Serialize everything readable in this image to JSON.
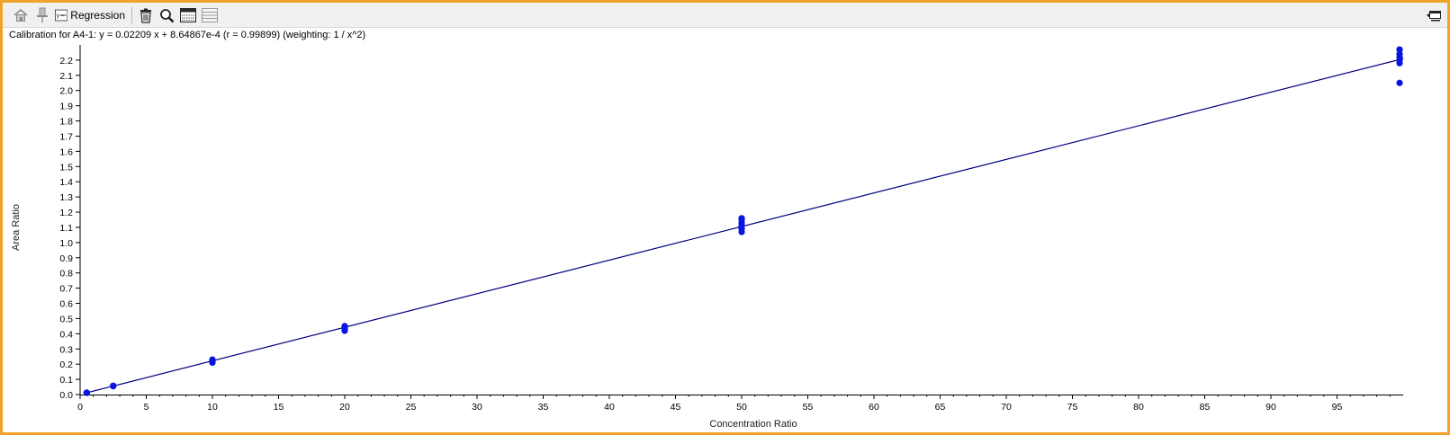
{
  "toolbar": {
    "regression_label": "Regression",
    "regression_icon_text": "y=",
    "icons": [
      "home-icon",
      "pin-icon",
      "regression-icon",
      "trash-icon",
      "zoom-icon",
      "calendar-table-icon",
      "list-icon",
      "dock-icon"
    ]
  },
  "colors": {
    "frame": "#f0a22a",
    "series": "#0a14e0",
    "fit_line": "#000080"
  },
  "chart_data": {
    "type": "scatter",
    "title": "Calibration for A4-1: y = 0.02209 x + 8.64867e-4 (r = 0.99899)  (weighting: 1 / x^2)",
    "xlabel": "Concentration Ratio",
    "ylabel": "Area Ratio",
    "xlim": [
      0,
      100
    ],
    "ylim": [
      0,
      2.3
    ],
    "xticks": [
      0,
      5,
      10,
      15,
      20,
      25,
      30,
      35,
      40,
      45,
      50,
      55,
      60,
      65,
      70,
      75,
      80,
      85,
      90,
      95
    ],
    "yticks": [
      0.0,
      0.1,
      0.2,
      0.3,
      0.4,
      0.5,
      0.6,
      0.7,
      0.8,
      0.9,
      1.0,
      1.1,
      1.2,
      1.3,
      1.4,
      1.5,
      1.6,
      1.7,
      1.8,
      1.9,
      2.0,
      2.1,
      2.2
    ],
    "grid": false,
    "fit": {
      "slope": 0.02209,
      "intercept": 0.000864867,
      "x_range": [
        0.5,
        100
      ]
    },
    "points": [
      {
        "x": 0.5,
        "y": 0.011
      },
      {
        "x": 0.5,
        "y": 0.013
      },
      {
        "x": 2.5,
        "y": 0.055
      },
      {
        "x": 2.5,
        "y": 0.058
      },
      {
        "x": 10,
        "y": 0.21
      },
      {
        "x": 10,
        "y": 0.22
      },
      {
        "x": 10,
        "y": 0.23
      },
      {
        "x": 20,
        "y": 0.42
      },
      {
        "x": 20,
        "y": 0.435
      },
      {
        "x": 20,
        "y": 0.45
      },
      {
        "x": 50,
        "y": 1.07
      },
      {
        "x": 50,
        "y": 1.09
      },
      {
        "x": 50,
        "y": 1.11
      },
      {
        "x": 50,
        "y": 1.13
      },
      {
        "x": 50,
        "y": 1.15
      },
      {
        "x": 50,
        "y": 1.16
      },
      {
        "x": 100,
        "y": 2.05
      },
      {
        "x": 100,
        "y": 2.18
      },
      {
        "x": 100,
        "y": 2.2
      },
      {
        "x": 100,
        "y": 2.22
      },
      {
        "x": 100,
        "y": 2.24
      },
      {
        "x": 100,
        "y": 2.27
      }
    ]
  }
}
